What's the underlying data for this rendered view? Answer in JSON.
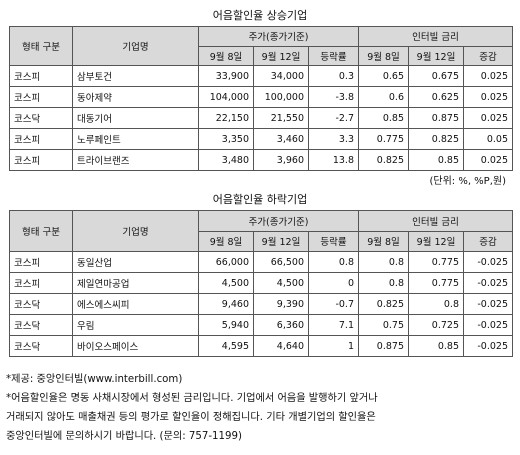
{
  "table1": {
    "title": "어음할인율 상승기업",
    "headers": {
      "type": "형태 구분",
      "company": "기업명",
      "price_group": "주가(종가기준)",
      "date1": "9월 8일",
      "date2": "9월 12일",
      "change": "등락률",
      "rate_group": "인터빌 금리",
      "rdate1": "9월 8일",
      "rdate2": "9월 12일",
      "rchange": "증감"
    },
    "rows": [
      [
        "코스피",
        "삼부토건",
        "33,900",
        "34,000",
        "0.3",
        "0.65",
        "0.675",
        "0.025"
      ],
      [
        "코스피",
        "동아제약",
        "104,000",
        "100,000",
        "-3.8",
        "0.6",
        "0.625",
        "0.025"
      ],
      [
        "코스닥",
        "대동기어",
        "22,150",
        "21,550",
        "-2.7",
        "0.85",
        "0.875",
        "0.025"
      ],
      [
        "코스피",
        "노루페인트",
        "3,350",
        "3,460",
        "3.3",
        "0.775",
        "0.825",
        "0.05"
      ],
      [
        "코스피",
        "트라이브랜즈",
        "3,480",
        "3,960",
        "13.8",
        "0.825",
        "0.85",
        "0.025"
      ]
    ]
  },
  "unit_note": "(단위: %, %P,원)",
  "table2": {
    "title": "어음할인율 하락기업",
    "headers": {
      "type": "형태 구분",
      "company": "기업명",
      "price_group": "주가(종가기준)",
      "date1": "9월 8일",
      "date2": "9월 12일",
      "change": "등락률",
      "rate_group": "인터빌 금리",
      "rdate1": "9월 8일",
      "rdate2": "9월 12일",
      "rchange": "증감"
    },
    "rows": [
      [
        "코스피",
        "동일산업",
        "66,000",
        "66,500",
        "0.8",
        "0.8",
        "0.775",
        "-0.025"
      ],
      [
        "코스피",
        "제일연마공업",
        "4,500",
        "4,500",
        "0",
        "0.8",
        "0.775",
        "-0.025"
      ],
      [
        "코스닥",
        "에스에스씨피",
        "9,460",
        "9,390",
        "-0.7",
        "0.825",
        "0.8",
        "-0.025"
      ],
      [
        "코스닥",
        "우림",
        "5,940",
        "6,360",
        "7.1",
        "0.75",
        "0.725",
        "-0.025"
      ],
      [
        "코스닥",
        "바이오스페이스",
        "4,595",
        "4,640",
        "1",
        "0.875",
        "0.85",
        "-0.025"
      ]
    ]
  },
  "notes": [
    "*제공: 중앙인터빌(www.interbill.com)",
    "*어음할인율은 명동 사채시장에서 형성된 금리입니다. 기업에서 어음을 발행하기 앞거나",
    "거래되지 않아도 매출채권 등의 평가로 할인율이 정해집니다. 기타 개별기업의 할인율은",
    "중앙인터빌에 문의하시기 바랍니다. (문의: 757-1199)"
  ]
}
